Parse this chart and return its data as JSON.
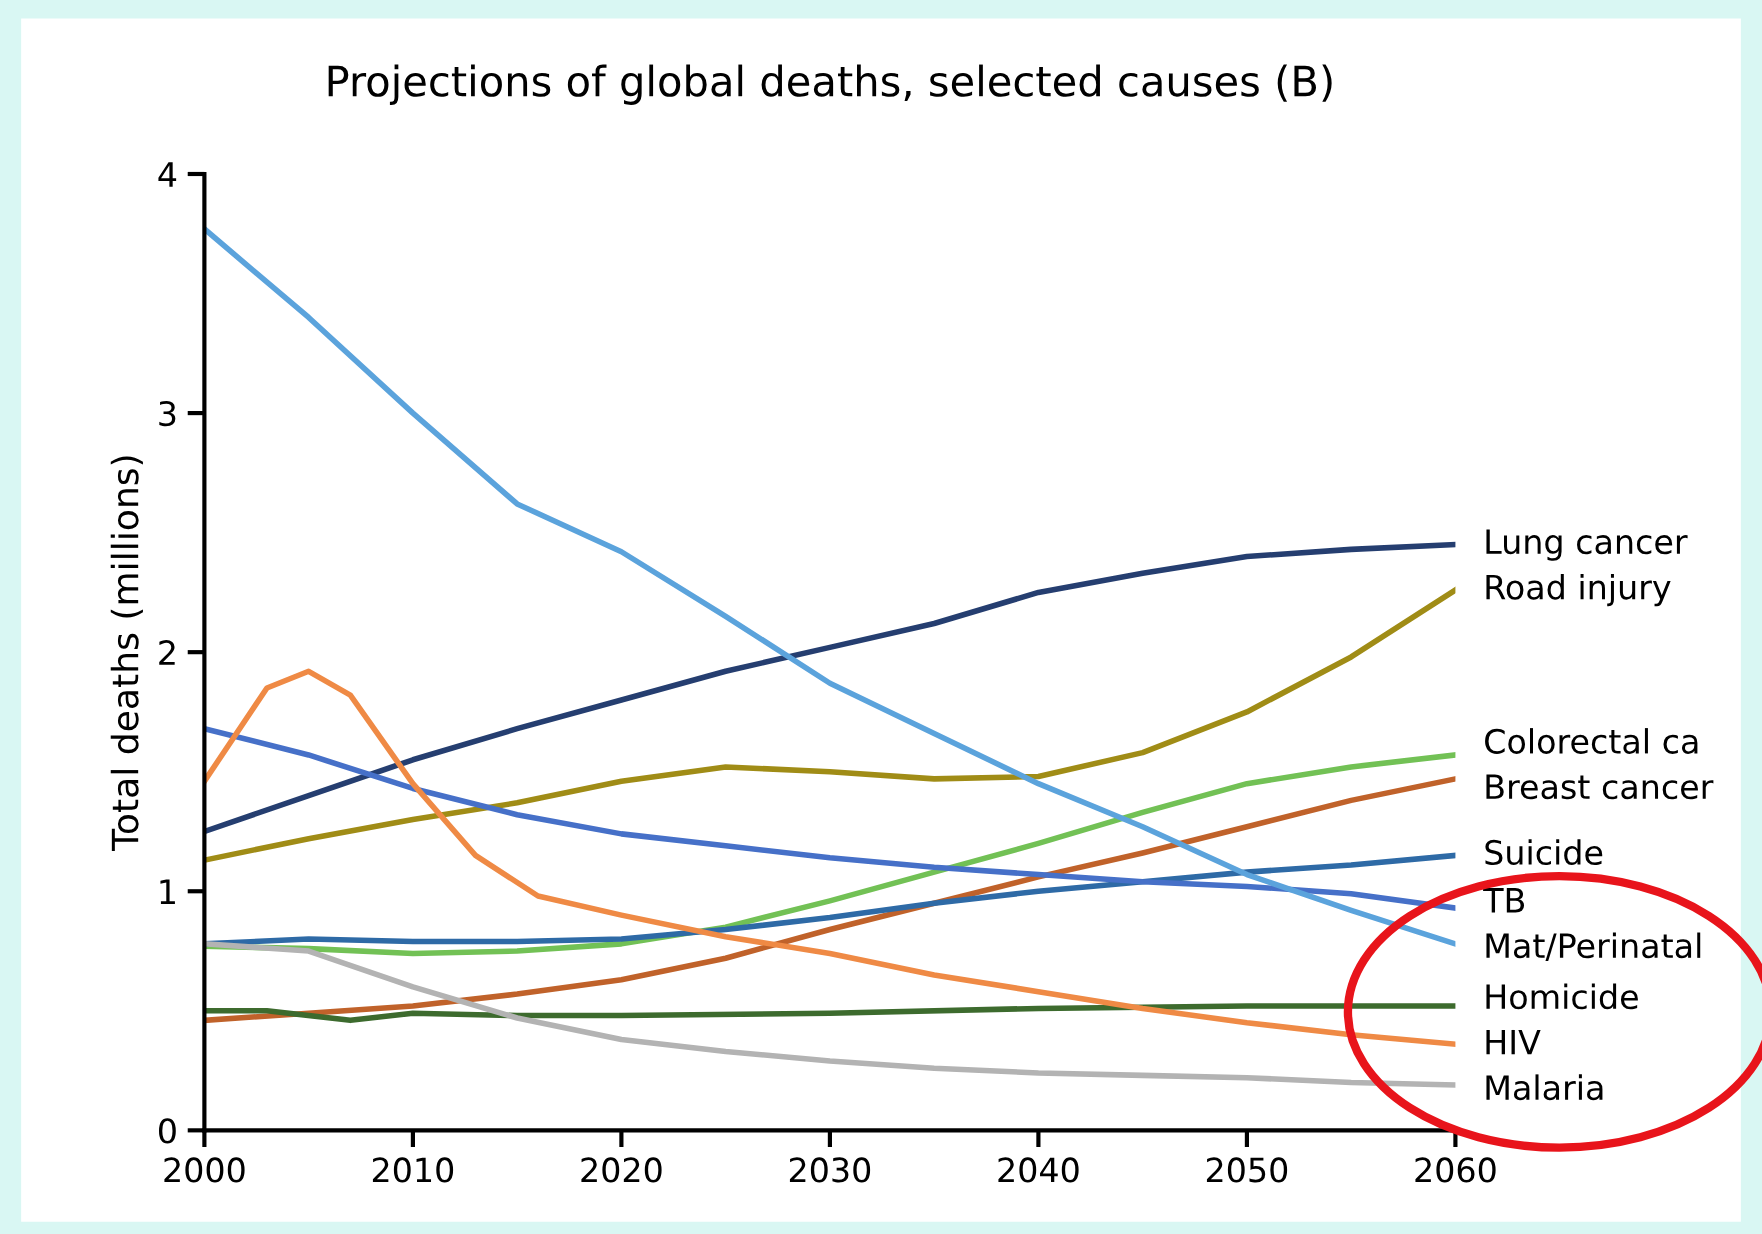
{
  "chart_data": {
    "type": "line",
    "title": "Projections of global deaths, selected causes (B)",
    "ylabel": "Total deaths (millions)",
    "xlim": [
      2000,
      2060
    ],
    "xticks": [
      2000,
      2010,
      2020,
      2030,
      2040,
      2050,
      2060
    ],
    "ylim": [
      0,
      4
    ],
    "yticks": [
      0,
      1,
      2,
      3,
      4
    ],
    "grid": false,
    "legend": false,
    "marker": "none",
    "line_style": "solid",
    "x": [
      2000,
      2005,
      2010,
      2015,
      2020,
      2025,
      2030,
      2035,
      2040,
      2045,
      2050,
      2055,
      2060
    ],
    "series": [
      {
        "name": "Lung cancer",
        "color": "#253e70",
        "values": [
          1.25,
          1.4,
          1.55,
          1.68,
          1.8,
          1.92,
          2.02,
          2.12,
          2.25,
          2.33,
          2.4,
          2.43,
          2.45
        ]
      },
      {
        "name": "Road injury",
        "color": "#a08c16",
        "values": [
          1.13,
          1.22,
          1.3,
          1.37,
          1.46,
          1.52,
          1.5,
          1.47,
          1.48,
          1.58,
          1.75,
          1.98,
          2.26
        ]
      },
      {
        "name": "Colorectal ca",
        "color": "#72c155",
        "values": [
          0.77,
          0.76,
          0.74,
          0.75,
          0.78,
          0.85,
          0.96,
          1.08,
          1.2,
          1.33,
          1.45,
          1.52,
          1.57
        ]
      },
      {
        "name": "Breast cancer",
        "color": "#c0622a",
        "values": [
          0.46,
          0.49,
          0.52,
          0.57,
          0.63,
          0.72,
          0.84,
          0.95,
          1.06,
          1.16,
          1.27,
          1.38,
          1.47
        ]
      },
      {
        "name": "Suicide",
        "color": "#2e6aa6",
        "values": [
          0.78,
          0.8,
          0.79,
          0.79,
          0.8,
          0.84,
          0.89,
          0.95,
          1.0,
          1.04,
          1.08,
          1.11,
          1.15
        ]
      },
      {
        "name": "TB",
        "color": "#4670c8",
        "values": [
          1.68,
          1.57,
          1.43,
          1.32,
          1.24,
          1.19,
          1.14,
          1.1,
          1.07,
          1.04,
          1.02,
          0.99,
          0.93
        ]
      },
      {
        "name": "Mat/Perinatal",
        "color": "#5ba3dc",
        "values": [
          3.77,
          3.4,
          3.0,
          2.62,
          2.42,
          2.15,
          1.87,
          1.66,
          1.45,
          1.27,
          1.07,
          0.92,
          0.78
        ]
      },
      {
        "name": "Homicide",
        "color": "#3d6b2e",
        "x": [
          2000,
          2003,
          2007,
          2010,
          2015,
          2020,
          2030,
          2040,
          2050,
          2060
        ],
        "values": [
          0.5,
          0.5,
          0.46,
          0.49,
          0.48,
          0.48,
          0.49,
          0.51,
          0.52,
          0.52
        ]
      },
      {
        "name": "HIV",
        "color": "#ef8a45",
        "x": [
          2000,
          2003,
          2005,
          2007,
          2010,
          2013,
          2016,
          2020,
          2025,
          2030,
          2035,
          2040,
          2045,
          2050,
          2055,
          2060
        ],
        "values": [
          1.46,
          1.85,
          1.92,
          1.82,
          1.45,
          1.15,
          0.98,
          0.9,
          0.81,
          0.74,
          0.65,
          0.58,
          0.51,
          0.45,
          0.4,
          0.36
        ]
      },
      {
        "name": "Malaria",
        "color": "#b3b3b3",
        "values": [
          0.78,
          0.75,
          0.6,
          0.47,
          0.38,
          0.33,
          0.29,
          0.26,
          0.24,
          0.23,
          0.22,
          0.2,
          0.19
        ]
      }
    ]
  }
}
